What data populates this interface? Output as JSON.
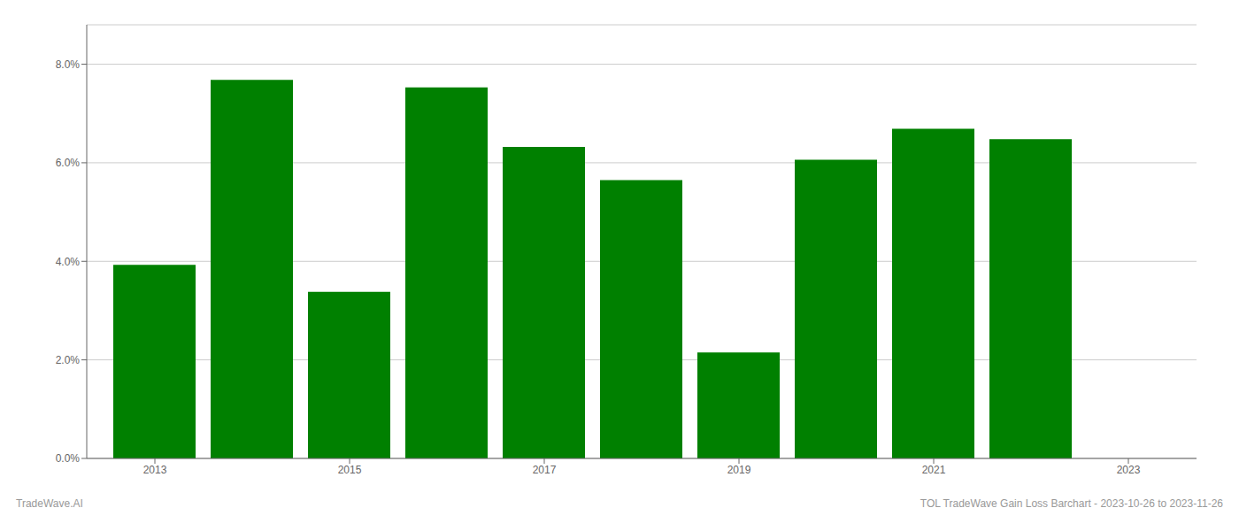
{
  "chart_data": {
    "type": "bar",
    "x": [
      2013,
      2014,
      2015,
      2016,
      2017,
      2018,
      2019,
      2020,
      2021,
      2022
    ],
    "values": [
      0.0393,
      0.0768,
      0.0338,
      0.0753,
      0.0632,
      0.0565,
      0.0215,
      0.0606,
      0.0669,
      0.0648
    ],
    "color": "#008000",
    "xlim": [
      2012.3,
      2023.7
    ],
    "xticks": [
      2013,
      2015,
      2017,
      2019,
      2021,
      2023
    ],
    "ylim": [
      0,
      0.088
    ],
    "yticks": [
      {
        "value": 0.0,
        "label": "0.0%"
      },
      {
        "value": 0.02,
        "label": "2.0%"
      },
      {
        "value": 0.04,
        "label": "4.0%"
      },
      {
        "value": 0.06,
        "label": "6.0%"
      },
      {
        "value": 0.08,
        "label": "8.0%"
      }
    ],
    "grid": true,
    "annotations": [
      "TradeWave.AI",
      "TOL TradeWave Gain Loss Barchart - 2023-10-26 to 2023-11-26"
    ]
  }
}
